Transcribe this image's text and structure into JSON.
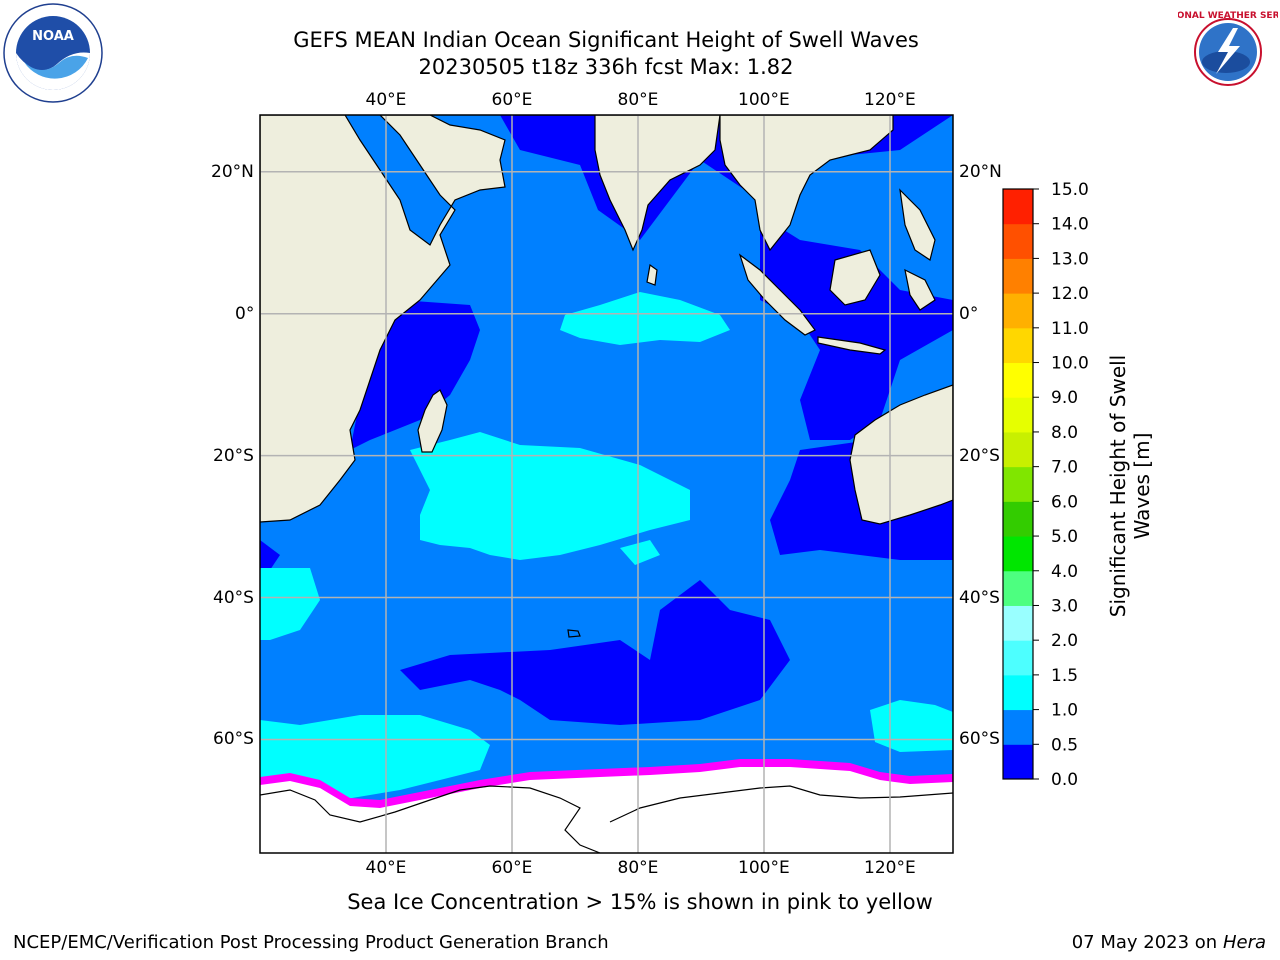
{
  "title_line1": "GEFS MEAN Indian Ocean Significant Height of Swell Waves",
  "title_line2": "20230505 t18z 336h fcst   Max: 1.82",
  "caption": "Sea Ice Concentration > 15% is shown in pink to yellow",
  "footer_left": "NCEP/EMC/Verification Post Processing Product Generation Branch",
  "footer_date": "07 May 2023 on",
  "footer_host": "Hera",
  "logos": {
    "left": "noaa-logo",
    "left_text": "NOAA",
    "right": "national-weather-service-logo",
    "right_text": "NATIONAL WEATHER SERVICE"
  },
  "map": {
    "lon_labels": [
      "40°E",
      "60°E",
      "80°E",
      "100°E",
      "120°E"
    ],
    "lat_labels": [
      "20°N",
      "0°",
      "20°S",
      "40°S",
      "60°S"
    ],
    "lon_values": [
      40,
      60,
      80,
      100,
      120
    ],
    "lat_values": [
      20,
      0,
      -20,
      -40,
      -60
    ],
    "lon_range": [
      20,
      130
    ],
    "lat_range": [
      -76,
      28
    ],
    "gridlines": true,
    "colors": {
      "land": "#eeeedd",
      "ocean": "#0080ff",
      "dark": "#0000ff",
      "cyan": "#00ffff",
      "ice": "#ffffff",
      "ice_edge": "#ff00ff",
      "grid": "#b3b3b3"
    }
  },
  "colorbar": {
    "label_line1": "Significant Height of Swell",
    "label_line2": "Waves [m]",
    "ticks": [
      "0.0",
      "0.5",
      "1.0",
      "1.5",
      "2.0",
      "3.0",
      "4.0",
      "5.0",
      "6.0",
      "7.0",
      "8.0",
      "9.0",
      "10.0",
      "11.0",
      "12.0",
      "13.0",
      "14.0",
      "15.0"
    ],
    "colors": [
      "#0000ff",
      "#0080ff",
      "#00ffff",
      "#4dffff",
      "#99ffff",
      "#4dff80",
      "#00e600",
      "#33cc00",
      "#80e600",
      "#c8f000",
      "#e6ff00",
      "#ffff00",
      "#ffd700",
      "#ffb000",
      "#ff8000",
      "#ff5000",
      "#ff2000"
    ]
  }
}
